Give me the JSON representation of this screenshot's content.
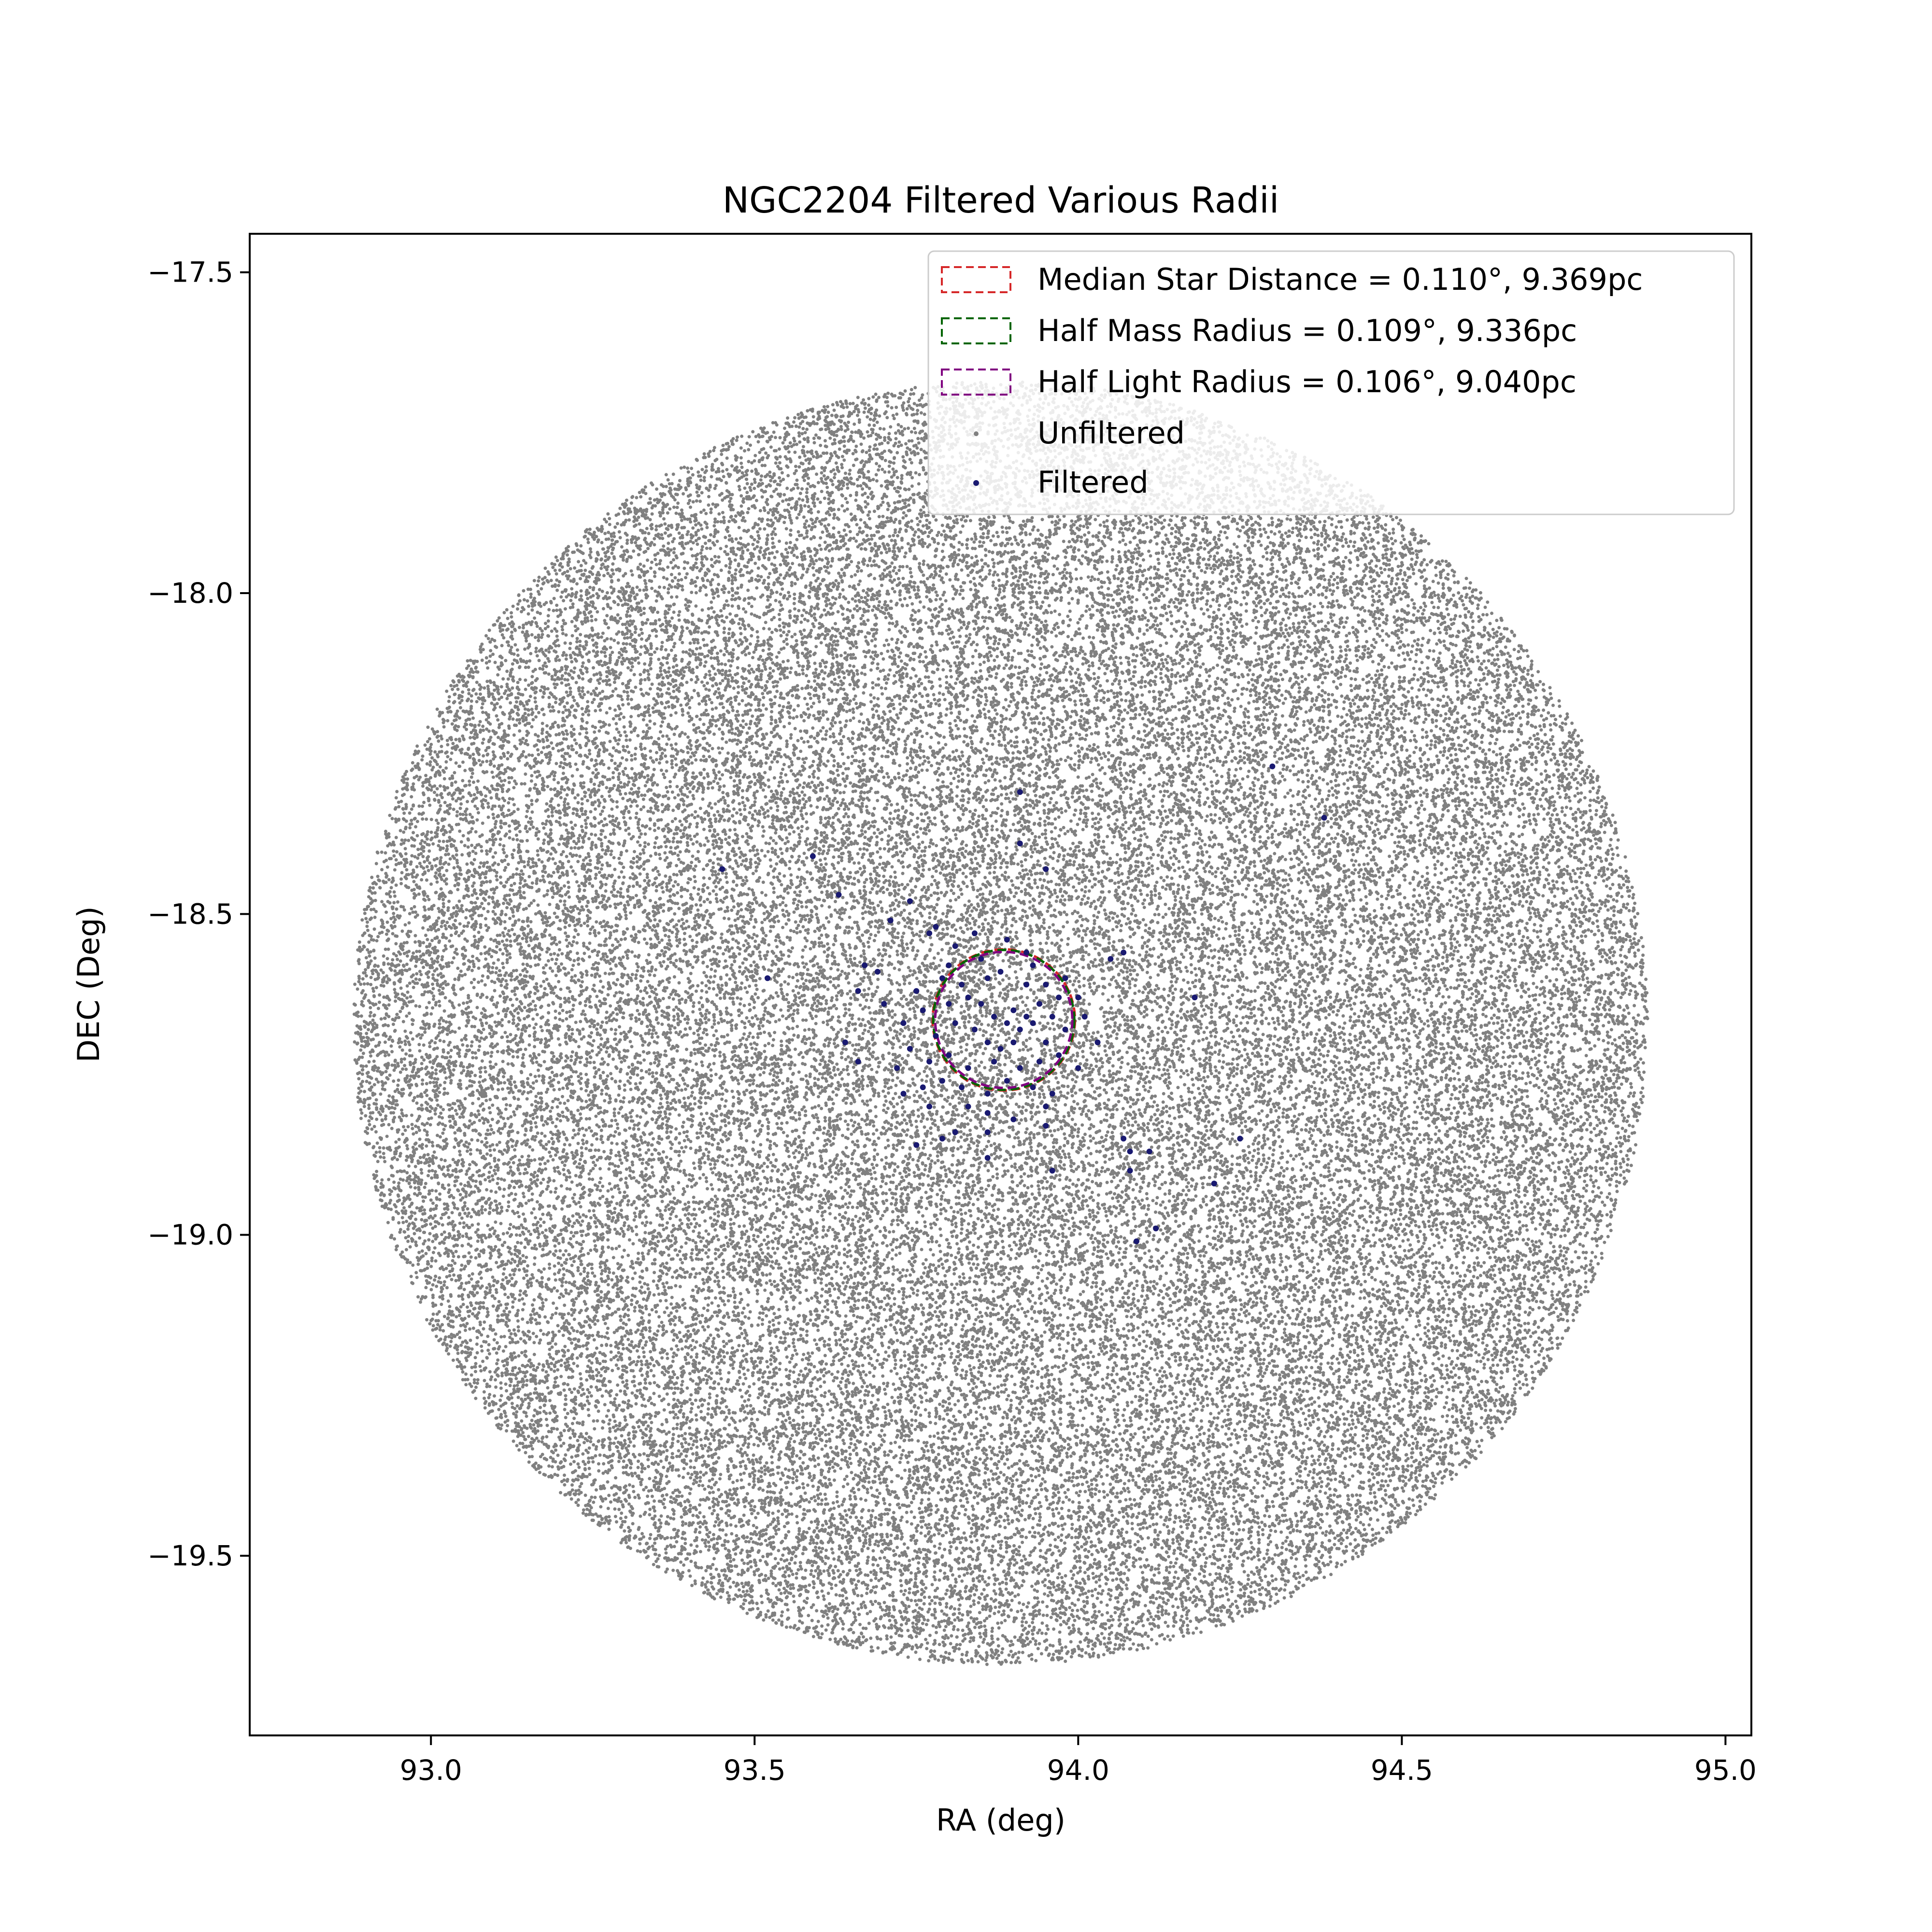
{
  "chart_data": {
    "type": "scatter",
    "title": "NGC2204 Filtered Various Radii",
    "xlabel": "RA (deg)",
    "ylabel": "DEC (Deg)",
    "xlim": [
      92.72,
      95.04
    ],
    "ylim": [
      -19.78,
      -17.44
    ],
    "x_ticks": [
      93.0,
      93.5,
      94.0,
      94.5,
      95.0
    ],
    "x_tick_labels": [
      "93.0",
      "93.5",
      "94.0",
      "94.5",
      "95.0"
    ],
    "y_ticks": [
      -17.5,
      -18.0,
      -18.5,
      -19.0,
      -19.5
    ],
    "y_tick_labels": [
      "−17.5",
      "−18.0",
      "−18.5",
      "−19.0",
      "−19.5"
    ],
    "legend_position": "upper-right",
    "grid": false,
    "field": {
      "center_ra": 93.88,
      "center_dec": -18.67,
      "radius_deg": 1.0
    },
    "cluster_center": {
      "ra": 93.885,
      "dec": -18.665
    },
    "series": [
      {
        "name": "Unfiltered",
        "kind": "scatter",
        "color": "#808080",
        "distribution": "uniform within field radius",
        "approx_count": 60000
      },
      {
        "name": "Filtered",
        "kind": "scatter",
        "color": "#191970",
        "points": [
          [
            94.3,
            -18.27
          ],
          [
            94.38,
            -18.35
          ],
          [
            93.45,
            -18.43
          ],
          [
            93.59,
            -18.41
          ],
          [
            93.63,
            -18.47
          ],
          [
            93.91,
            -18.31
          ],
          [
            93.91,
            -18.39
          ],
          [
            93.95,
            -18.43
          ],
          [
            93.52,
            -18.6
          ],
          [
            93.71,
            -18.51
          ],
          [
            93.74,
            -18.48
          ],
          [
            93.77,
            -18.53
          ],
          [
            93.78,
            -18.52
          ],
          [
            93.81,
            -18.55
          ],
          [
            93.84,
            -18.53
          ],
          [
            93.89,
            -18.54
          ],
          [
            93.92,
            -18.56
          ],
          [
            94.05,
            -18.57
          ],
          [
            94.07,
            -18.56
          ],
          [
            93.67,
            -18.58
          ],
          [
            93.69,
            -18.59
          ],
          [
            93.75,
            -18.62
          ],
          [
            93.79,
            -18.6
          ],
          [
            93.82,
            -18.61
          ],
          [
            93.86,
            -18.6
          ],
          [
            93.88,
            -18.59
          ],
          [
            93.93,
            -18.58
          ],
          [
            93.95,
            -18.61
          ],
          [
            93.98,
            -18.6
          ],
          [
            94.0,
            -18.63
          ],
          [
            94.18,
            -18.63
          ],
          [
            93.66,
            -18.62
          ],
          [
            93.76,
            -18.65
          ],
          [
            93.8,
            -18.64
          ],
          [
            93.83,
            -18.63
          ],
          [
            93.85,
            -18.64
          ],
          [
            93.87,
            -18.66
          ],
          [
            93.89,
            -18.67
          ],
          [
            93.9,
            -18.65
          ],
          [
            93.91,
            -18.68
          ],
          [
            93.92,
            -18.66
          ],
          [
            93.93,
            -18.67
          ],
          [
            93.94,
            -18.64
          ],
          [
            93.96,
            -18.66
          ],
          [
            93.84,
            -18.68
          ],
          [
            93.81,
            -18.67
          ],
          [
            93.78,
            -18.69
          ],
          [
            93.86,
            -18.7
          ],
          [
            93.88,
            -18.71
          ],
          [
            93.9,
            -18.7
          ],
          [
            93.95,
            -18.7
          ],
          [
            93.98,
            -18.68
          ],
          [
            94.01,
            -18.66
          ],
          [
            93.64,
            -18.7
          ],
          [
            93.66,
            -18.73
          ],
          [
            93.72,
            -18.74
          ],
          [
            93.77,
            -18.73
          ],
          [
            93.8,
            -18.72
          ],
          [
            93.83,
            -18.74
          ],
          [
            93.87,
            -18.73
          ],
          [
            93.91,
            -18.74
          ],
          [
            93.94,
            -18.73
          ],
          [
            93.97,
            -18.72
          ],
          [
            94.0,
            -18.74
          ],
          [
            93.76,
            -18.77
          ],
          [
            93.79,
            -18.76
          ],
          [
            93.82,
            -18.77
          ],
          [
            93.86,
            -18.78
          ],
          [
            93.89,
            -18.76
          ],
          [
            93.93,
            -18.77
          ],
          [
            93.96,
            -18.78
          ],
          [
            93.73,
            -18.78
          ],
          [
            93.77,
            -18.8
          ],
          [
            93.83,
            -18.8
          ],
          [
            93.86,
            -18.81
          ],
          [
            93.95,
            -18.8
          ],
          [
            93.9,
            -18.82
          ],
          [
            93.81,
            -18.84
          ],
          [
            93.86,
            -18.84
          ],
          [
            93.95,
            -18.83
          ],
          [
            93.75,
            -18.86
          ],
          [
            93.79,
            -18.85
          ],
          [
            93.86,
            -18.88
          ],
          [
            93.96,
            -18.9
          ],
          [
            94.07,
            -18.85
          ],
          [
            94.08,
            -18.87
          ],
          [
            94.08,
            -18.9
          ],
          [
            94.11,
            -18.87
          ],
          [
            94.25,
            -18.85
          ],
          [
            94.21,
            -18.92
          ],
          [
            94.12,
            -18.99
          ],
          [
            94.09,
            -19.01
          ],
          [
            93.73,
            -18.67
          ],
          [
            93.74,
            -18.71
          ],
          [
            94.03,
            -18.7
          ],
          [
            93.8,
            -18.58
          ],
          [
            93.97,
            -18.63
          ],
          [
            93.85,
            -18.57
          ],
          [
            93.92,
            -18.61
          ],
          [
            93.7,
            -18.64
          ]
        ]
      }
    ],
    "circles": [
      {
        "name": "Median Star Distance = 0.110°, 9.369pc",
        "radius_deg": 0.11,
        "color": "#d62728"
      },
      {
        "name": "Half Mass Radius = 0.109°, 9.336pc",
        "radius_deg": 0.109,
        "color": "#006400"
      },
      {
        "name": "Half Light Radius = 0.106°, 9.040pc",
        "radius_deg": 0.106,
        "color": "#800080"
      }
    ]
  }
}
